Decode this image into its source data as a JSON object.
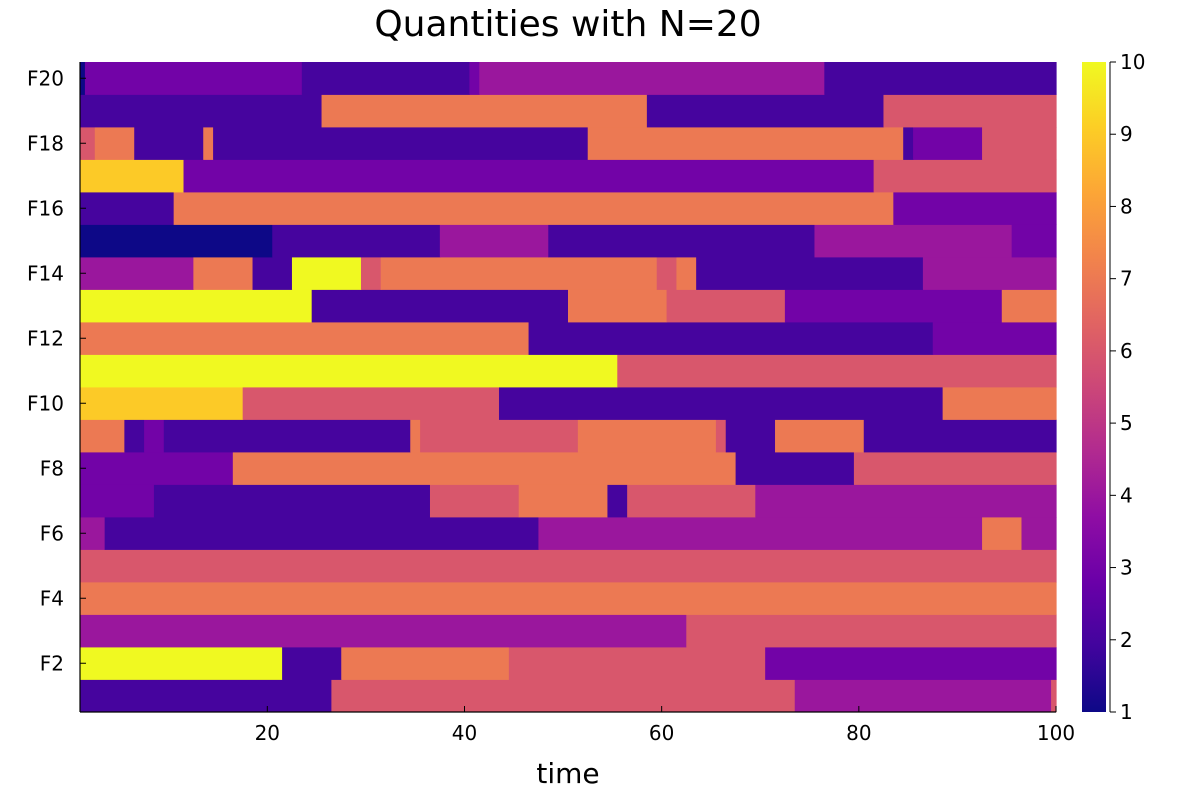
{
  "chart_data": {
    "type": "heatmap",
    "title": "Quantities with N=20",
    "xlabel": "time",
    "ylabel": "",
    "xlim": [
      1,
      100
    ],
    "ylim": [
      0.5,
      20.5
    ],
    "x_ticks": [
      20,
      40,
      60,
      80,
      100
    ],
    "y_tick_labels": [
      {
        "row": 2,
        "label": "F2"
      },
      {
        "row": 4,
        "label": "F4"
      },
      {
        "row": 6,
        "label": "F6"
      },
      {
        "row": 8,
        "label": "F8"
      },
      {
        "row": 10,
        "label": "F10"
      },
      {
        "row": 12,
        "label": "F12"
      },
      {
        "row": 14,
        "label": "F14"
      },
      {
        "row": 16,
        "label": "F16"
      },
      {
        "row": 18,
        "label": "F18"
      },
      {
        "row": 20,
        "label": "F20"
      }
    ],
    "colorbar": {
      "colormap": "plasma",
      "range": [
        1,
        10
      ],
      "ticks": [
        1,
        2,
        3,
        4,
        5,
        6,
        7,
        8,
        9,
        10
      ]
    },
    "grid": false,
    "rows": [
      {
        "row": 1,
        "segments": [
          [
            1,
            27,
            2
          ],
          [
            27,
            74,
            6
          ],
          [
            74,
            100,
            4
          ],
          [
            100,
            101,
            6
          ]
        ]
      },
      {
        "row": 2,
        "segments": [
          [
            1,
            22,
            10
          ],
          [
            22,
            28,
            2
          ],
          [
            28,
            45,
            7
          ],
          [
            45,
            71,
            6
          ],
          [
            71,
            101,
            3
          ]
        ]
      },
      {
        "row": 3,
        "segments": [
          [
            1,
            63,
            4
          ],
          [
            63,
            101,
            6
          ]
        ]
      },
      {
        "row": 4,
        "segments": [
          [
            1,
            101,
            7
          ]
        ]
      },
      {
        "row": 5,
        "segments": [
          [
            1,
            101,
            6
          ]
        ]
      },
      {
        "row": 6,
        "segments": [
          [
            1,
            4,
            4
          ],
          [
            4,
            48,
            2
          ],
          [
            48,
            93,
            4
          ],
          [
            93,
            97,
            7
          ],
          [
            97,
            101,
            4
          ]
        ]
      },
      {
        "row": 7,
        "segments": [
          [
            1,
            9,
            3
          ],
          [
            9,
            37,
            2
          ],
          [
            37,
            46,
            6
          ],
          [
            46,
            55,
            7
          ],
          [
            55,
            57,
            2
          ],
          [
            57,
            70,
            6
          ],
          [
            70,
            101,
            4
          ]
        ]
      },
      {
        "row": 8,
        "segments": [
          [
            1,
            17,
            3
          ],
          [
            17,
            68,
            7
          ],
          [
            68,
            80,
            2
          ],
          [
            80,
            101,
            6
          ]
        ]
      },
      {
        "row": 9,
        "segments": [
          [
            1,
            6,
            7
          ],
          [
            6,
            8,
            2
          ],
          [
            8,
            10,
            3
          ],
          [
            10,
            35,
            2
          ],
          [
            35,
            36,
            7
          ],
          [
            36,
            52,
            6
          ],
          [
            52,
            66,
            7
          ],
          [
            66,
            67,
            6
          ],
          [
            67,
            72,
            2
          ],
          [
            72,
            81,
            7
          ],
          [
            81,
            101,
            2
          ]
        ]
      },
      {
        "row": 10,
        "segments": [
          [
            1,
            18,
            9
          ],
          [
            18,
            44,
            6
          ],
          [
            44,
            89,
            2
          ],
          [
            89,
            101,
            7
          ]
        ]
      },
      {
        "row": 11,
        "segments": [
          [
            1,
            56,
            10
          ],
          [
            56,
            101,
            6
          ]
        ]
      },
      {
        "row": 12,
        "segments": [
          [
            1,
            47,
            7
          ],
          [
            47,
            88,
            2
          ],
          [
            88,
            101,
            3
          ]
        ]
      },
      {
        "row": 13,
        "segments": [
          [
            1,
            25,
            10
          ],
          [
            25,
            51,
            2
          ],
          [
            51,
            61,
            7
          ],
          [
            61,
            73,
            6
          ],
          [
            73,
            95,
            3
          ],
          [
            95,
            101,
            7
          ]
        ]
      },
      {
        "row": 14,
        "segments": [
          [
            1,
            13,
            4
          ],
          [
            13,
            19,
            7
          ],
          [
            19,
            23,
            2
          ],
          [
            23,
            30,
            10
          ],
          [
            30,
            32,
            6
          ],
          [
            32,
            60,
            7
          ],
          [
            60,
            62,
            6
          ],
          [
            62,
            64,
            7
          ],
          [
            64,
            87,
            2
          ],
          [
            87,
            101,
            4
          ]
        ]
      },
      {
        "row": 15,
        "segments": [
          [
            1,
            21,
            1
          ],
          [
            21,
            38,
            2
          ],
          [
            38,
            49,
            4
          ],
          [
            49,
            76,
            2
          ],
          [
            76,
            96,
            4
          ],
          [
            96,
            101,
            3
          ]
        ]
      },
      {
        "row": 16,
        "segments": [
          [
            1,
            11,
            2
          ],
          [
            11,
            84,
            7
          ],
          [
            84,
            101,
            3
          ]
        ]
      },
      {
        "row": 17,
        "segments": [
          [
            1,
            12,
            9
          ],
          [
            12,
            82,
            3
          ],
          [
            82,
            101,
            6
          ]
        ]
      },
      {
        "row": 18,
        "segments": [
          [
            1,
            3,
            6
          ],
          [
            3,
            7,
            7
          ],
          [
            7,
            14,
            2
          ],
          [
            14,
            15,
            7
          ],
          [
            15,
            53,
            2
          ],
          [
            53,
            85,
            7
          ],
          [
            85,
            86,
            2
          ],
          [
            86,
            93,
            3
          ],
          [
            93,
            101,
            6
          ]
        ]
      },
      {
        "row": 19,
        "segments": [
          [
            1,
            26,
            2
          ],
          [
            26,
            59,
            7
          ],
          [
            59,
            83,
            2
          ],
          [
            83,
            101,
            6
          ]
        ]
      },
      {
        "row": 20,
        "segments": [
          [
            1,
            2,
            1
          ],
          [
            2,
            24,
            3
          ],
          [
            24,
            41,
            2
          ],
          [
            41,
            42,
            3
          ],
          [
            42,
            77,
            4
          ],
          [
            77,
            101,
            2
          ]
        ]
      }
    ]
  }
}
